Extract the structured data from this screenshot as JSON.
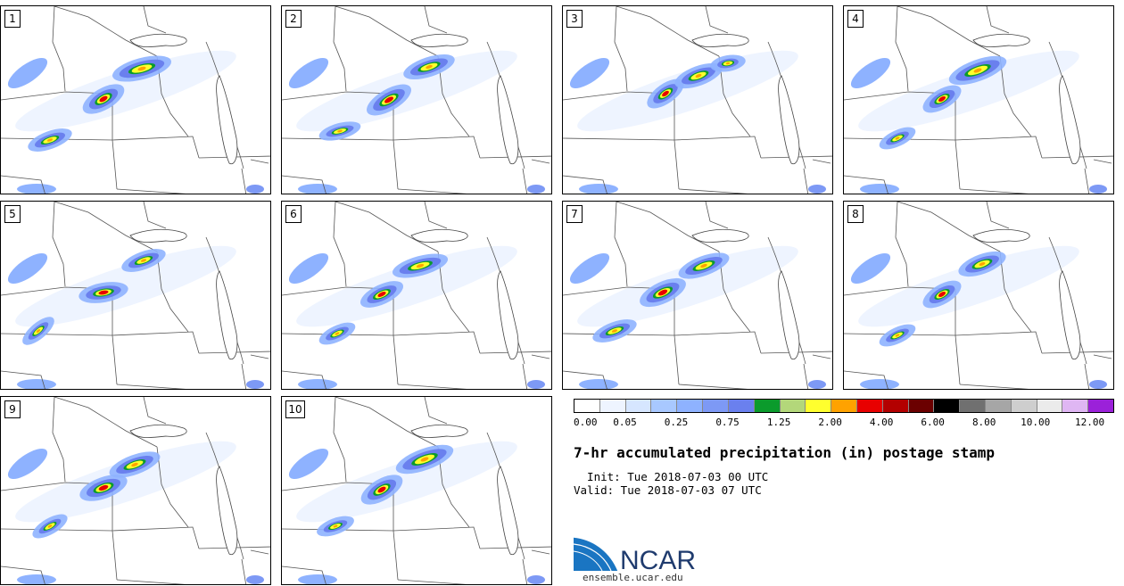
{
  "panels": [
    {
      "label": "1"
    },
    {
      "label": "2"
    },
    {
      "label": "3"
    },
    {
      "label": "4"
    },
    {
      "label": "5"
    },
    {
      "label": "6"
    },
    {
      "label": "7"
    },
    {
      "label": "8"
    },
    {
      "label": "9"
    },
    {
      "label": "10"
    }
  ],
  "colorbar": {
    "colors": [
      "#ffffff",
      "#eef4ff",
      "#d6e6ff",
      "#a8c8ff",
      "#8eb2ff",
      "#7d99f5",
      "#6a80ee",
      "#0b9b2c",
      "#b3d77a",
      "#ffff2e",
      "#ffa200",
      "#e80000",
      "#b30000",
      "#6b0000",
      "#000000",
      "#707070",
      "#a6a6a6",
      "#cecece",
      "#ebebeb",
      "#dfb6f3",
      "#9b21d9"
    ],
    "tick_labels": [
      "0.00",
      "0.05",
      "0.25",
      "0.75",
      "1.25",
      "2.00",
      "4.00",
      "6.00",
      "8.00",
      "10.00",
      "12.00"
    ]
  },
  "title": "7-hr accumulated precipitation (in) postage stamp",
  "init_line": "  Init: Tue 2018-07-03 00 UTC",
  "valid_line": "Valid: Tue 2018-07-03 07 UTC",
  "logo": {
    "text": "NCAR",
    "url": "ensemble.ucar.edu",
    "colors": {
      "blue": "#1a75c2",
      "navy": "#1f3b6e"
    }
  }
}
